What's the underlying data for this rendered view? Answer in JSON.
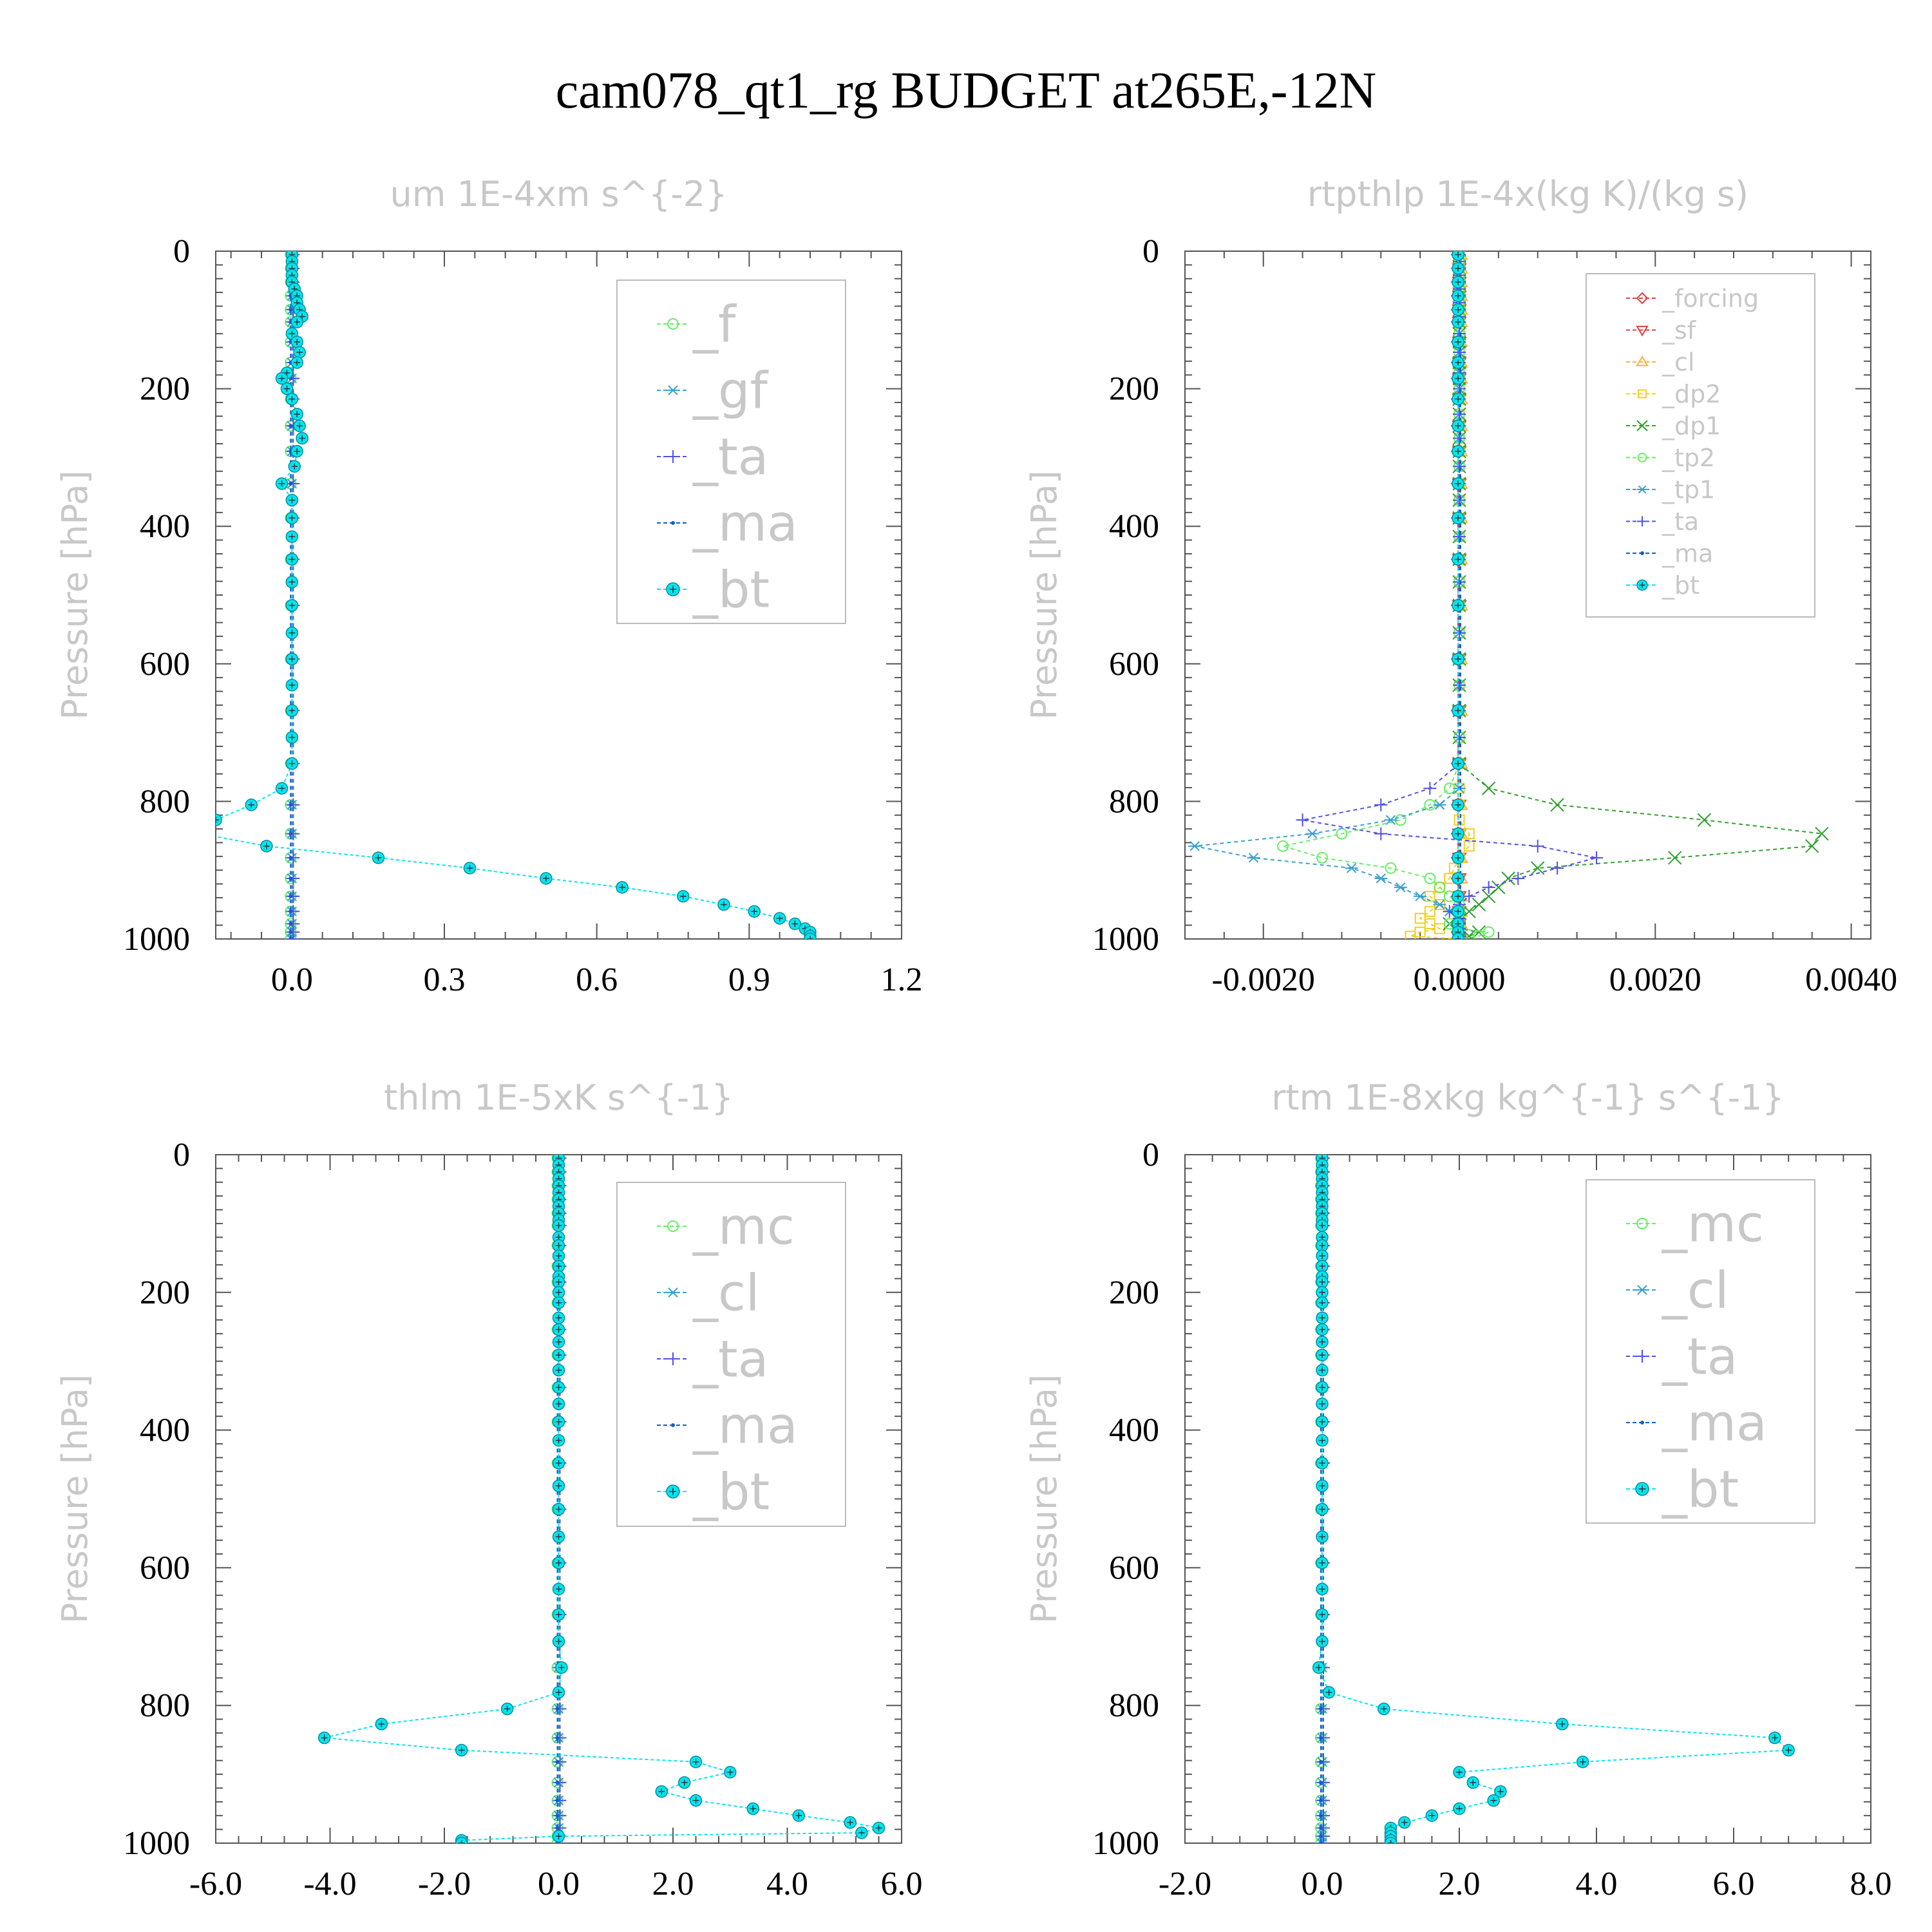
{
  "figure": {
    "title": "cam078_qt1_rg  BUDGET at265E,-12N"
  },
  "chart_data": [
    {
      "type": "line",
      "title": "um   1E-4xm s^{-2}",
      "ylabel": "Pressure [hPa]",
      "xlim": [
        -0.15,
        1.2
      ],
      "ylim": [
        1000,
        0
      ],
      "xticks": [
        "0.0",
        "0.3",
        "0.6",
        "0.9",
        "1.2"
      ],
      "yticks": [
        "0",
        "200",
        "400",
        "600",
        "800",
        "1000"
      ],
      "legend_position": "top-right",
      "levels": [
        5,
        15,
        25,
        35,
        45,
        55,
        65,
        75,
        85,
        95,
        103,
        120,
        132,
        147,
        162,
        177,
        185,
        200,
        215,
        237,
        254,
        272,
        291,
        313,
        338,
        362,
        388,
        415,
        448,
        481,
        515,
        555,
        593,
        631,
        668,
        707,
        745,
        781,
        805,
        827,
        847,
        865,
        882,
        897,
        912,
        925,
        938,
        950,
        960,
        970,
        978,
        985,
        990,
        996,
        1000
      ],
      "series": [
        {
          "name": "_f",
          "color": "#66ee66",
          "marker": "circle-open"
        },
        {
          "name": "_gf",
          "color": "#3aa0d0",
          "marker": "star"
        },
        {
          "name": "_ta",
          "color": "#5050e8",
          "marker": "plus"
        },
        {
          "name": "_ma",
          "color": "#1060c0",
          "marker": "dot"
        },
        {
          "name": "_bt",
          "color": "#00e6f0",
          "marker": "filled-circle",
          "values": [
            0.0,
            0.0,
            0.0,
            0.0,
            0.0,
            0.005,
            0.01,
            0.01,
            0.015,
            0.02,
            0.01,
            0.0,
            0.01,
            0.015,
            0.01,
            -0.01,
            -0.02,
            -0.01,
            0.0,
            0.01,
            0.015,
            0.02,
            0.01,
            0.005,
            -0.02,
            0.0,
            0.0,
            0.0,
            0.0,
            0.0,
            0.0,
            0.0,
            0.0,
            0.0,
            0.0,
            0.0,
            0.0,
            -0.02,
            -0.08,
            -0.15,
            -0.18,
            -0.05,
            0.17,
            0.35,
            0.5,
            0.65,
            0.77,
            0.85,
            0.91,
            0.96,
            0.99,
            1.01,
            1.02,
            1.02,
            1.02
          ]
        }
      ]
    },
    {
      "type": "line",
      "title": "rtpthlp   1E-4x(kg K)/(kg s)",
      "ylabel": "Pressure [hPa]",
      "xlim": [
        -0.0028,
        0.0042
      ],
      "ylim": [
        1000,
        0
      ],
      "xticks": [
        "-0.0020",
        "0.0000",
        "0.0020",
        "0.0040"
      ],
      "yticks": [
        "0",
        "200",
        "400",
        "600",
        "800",
        "1000"
      ],
      "legend_position": "top-right",
      "levels": [
        5,
        15,
        25,
        35,
        45,
        55,
        65,
        75,
        85,
        95,
        103,
        120,
        132,
        147,
        162,
        177,
        185,
        200,
        215,
        237,
        254,
        272,
        291,
        313,
        338,
        362,
        388,
        415,
        448,
        481,
        515,
        555,
        593,
        631,
        668,
        707,
        745,
        781,
        805,
        827,
        847,
        865,
        882,
        897,
        912,
        925,
        938,
        950,
        960,
        970,
        978,
        985,
        990,
        996,
        1000
      ],
      "profile_levels": [
        745,
        781,
        805,
        827,
        847,
        865,
        882,
        897,
        912,
        925,
        938,
        950,
        960,
        970,
        978,
        985,
        990,
        996,
        1000
      ],
      "series": [
        {
          "name": "_forcing",
          "color": "#e04040",
          "marker": "diamond-open"
        },
        {
          "name": "_sf",
          "color": "#e04040",
          "marker": "triangle-down"
        },
        {
          "name": "_cl",
          "color": "#ffb040",
          "marker": "triangle-up"
        },
        {
          "name": "_dp2",
          "color": "#f0d020",
          "marker": "square-open",
          "profile": [
            0,
            0,
            0,
            0,
            0.0001,
            0.0001,
            0,
            -5e-05,
            -0.0001,
            -0.0002,
            -0.0003,
            -0.0002,
            -0.0003,
            -0.0004,
            -0.0003,
            -0.0002,
            -0.0004,
            -0.0005,
            0
          ]
        },
        {
          "name": "_dp1",
          "color": "#30a030",
          "marker": "x",
          "profile": [
            0,
            0.0003,
            0.001,
            0.0025,
            0.0037,
            0.0036,
            0.0022,
            0.0008,
            0.0005,
            0.0004,
            0.0003,
            0.0002,
            0.0001,
            0,
            -0.0001,
            0,
            0.0002,
            0.0001,
            0
          ]
        },
        {
          "name": "_tp2",
          "color": "#66ee66",
          "marker": "circle-open",
          "profile": [
            0,
            -0.0001,
            -0.0003,
            -0.0006,
            -0.0012,
            -0.0018,
            -0.0014,
            -0.0007,
            -0.0003,
            -0.0002,
            -0.0001,
            0,
            0,
            0,
            -0.0001,
            0,
            0.0003,
            0.0002,
            0
          ]
        },
        {
          "name": "_tp1",
          "color": "#3aa0d0",
          "marker": "star",
          "profile": [
            0,
            0,
            -0.0002,
            -0.0007,
            -0.0015,
            -0.0027,
            -0.0021,
            -0.0011,
            -0.0008,
            -0.0006,
            -0.0004,
            -0.0002,
            -0.0001,
            0,
            0,
            0,
            0,
            0,
            0
          ]
        },
        {
          "name": "_ta",
          "color": "#5050e8",
          "marker": "plus",
          "profile": [
            0,
            -0.0003,
            -0.0008,
            -0.0016,
            -0.0008,
            0.0008,
            0.0014,
            0.001,
            0.0006,
            0.0003,
            0.0001,
            0,
            -0.0001,
            0,
            0,
            0,
            0,
            0,
            0
          ]
        },
        {
          "name": "_ma",
          "color": "#1060c0",
          "marker": "dot"
        },
        {
          "name": "_bt",
          "color": "#00e6f0",
          "marker": "filled-circle"
        }
      ]
    },
    {
      "type": "line",
      "title": "thlm   1E-5xK s^{-1}",
      "ylabel": "Pressure [hPa]",
      "xlim": [
        -6.0,
        6.0
      ],
      "ylim": [
        1000,
        0
      ],
      "xticks": [
        "-6.0",
        "-4.0",
        "-2.0",
        "0.0",
        "2.0",
        "4.0",
        "6.0"
      ],
      "yticks": [
        "0",
        "200",
        "400",
        "600",
        "800",
        "1000"
      ],
      "legend_position": "top-right",
      "levels": [
        5,
        15,
        25,
        35,
        45,
        55,
        65,
        75,
        85,
        95,
        103,
        120,
        132,
        147,
        162,
        177,
        185,
        200,
        215,
        237,
        254,
        272,
        291,
        313,
        338,
        362,
        388,
        415,
        448,
        481,
        515,
        555,
        593,
        631,
        668,
        707,
        745,
        781,
        805,
        827,
        847,
        865,
        882,
        897,
        912,
        925,
        938,
        950,
        960,
        970,
        978,
        985,
        990,
        996,
        1000
      ],
      "series": [
        {
          "name": "_mc",
          "color": "#66ee66",
          "marker": "circle-open"
        },
        {
          "name": "_cl",
          "color": "#3aa0d0",
          "marker": "star"
        },
        {
          "name": "_ta",
          "color": "#5050e8",
          "marker": "plus"
        },
        {
          "name": "_ma",
          "color": "#1060c0",
          "marker": "dot"
        },
        {
          "name": "_bt",
          "color": "#00e6f0",
          "marker": "filled-circle",
          "values": [
            0.0,
            0.0,
            0.0,
            0.0,
            0.0,
            0.0,
            0.0,
            0.0,
            0.0,
            0.0,
            0.0,
            0.0,
            0.0,
            0.0,
            0.0,
            0.0,
            0.0,
            0.0,
            0.0,
            0.0,
            0.0,
            0.0,
            0.0,
            0.0,
            0.0,
            0.0,
            0.0,
            0.0,
            0.0,
            0.0,
            0.0,
            0.0,
            0.0,
            0.0,
            0.0,
            0.0,
            0.05,
            0.0,
            -0.9,
            -3.1,
            -4.1,
            -1.7,
            2.4,
            3.0,
            2.2,
            1.8,
            2.4,
            3.4,
            4.2,
            5.1,
            5.6,
            5.3,
            0.0,
            -1.7,
            -1.7
          ]
        }
      ]
    },
    {
      "type": "line",
      "title": "rtm   1E-8xkg kg^{-1} s^{-1}",
      "ylabel": "Pressure [hPa]",
      "xlim": [
        -2.0,
        8.0
      ],
      "ylim": [
        1000,
        0
      ],
      "xticks": [
        "-2.0",
        "0.0",
        "2.0",
        "4.0",
        "6.0",
        "8.0"
      ],
      "yticks": [
        "0",
        "200",
        "400",
        "600",
        "800",
        "1000"
      ],
      "legend_position": "top-right",
      "levels": [
        5,
        15,
        25,
        35,
        45,
        55,
        65,
        75,
        85,
        95,
        103,
        120,
        132,
        147,
        162,
        177,
        185,
        200,
        215,
        237,
        254,
        272,
        291,
        313,
        338,
        362,
        388,
        415,
        448,
        481,
        515,
        555,
        593,
        631,
        668,
        707,
        745,
        781,
        805,
        827,
        847,
        865,
        882,
        897,
        912,
        925,
        938,
        950,
        960,
        970,
        978,
        985,
        990,
        996,
        1000
      ],
      "series": [
        {
          "name": "_mc",
          "color": "#66ee66",
          "marker": "circle-open"
        },
        {
          "name": "_cl",
          "color": "#3aa0d0",
          "marker": "star"
        },
        {
          "name": "_ta",
          "color": "#5050e8",
          "marker": "plus"
        },
        {
          "name": "_ma",
          "color": "#1060c0",
          "marker": "dot"
        },
        {
          "name": "_bt",
          "color": "#00e6f0",
          "marker": "filled-circle",
          "values": [
            0.0,
            0.0,
            0.0,
            0.0,
            0.0,
            0.0,
            0.0,
            0.0,
            0.0,
            0.0,
            0.0,
            0.0,
            0.0,
            0.0,
            0.0,
            0.0,
            0.0,
            0.0,
            0.0,
            0.0,
            0.0,
            0.0,
            0.0,
            0.0,
            0.0,
            0.0,
            0.0,
            0.0,
            0.0,
            0.0,
            0.0,
            0.0,
            0.0,
            0.0,
            0.0,
            0.0,
            -0.05,
            0.1,
            0.9,
            3.5,
            6.6,
            6.8,
            3.8,
            2.0,
            2.2,
            2.6,
            2.5,
            2.0,
            1.6,
            1.2,
            1.0,
            1.0,
            1.0,
            1.0,
            1.0
          ]
        }
      ]
    }
  ]
}
